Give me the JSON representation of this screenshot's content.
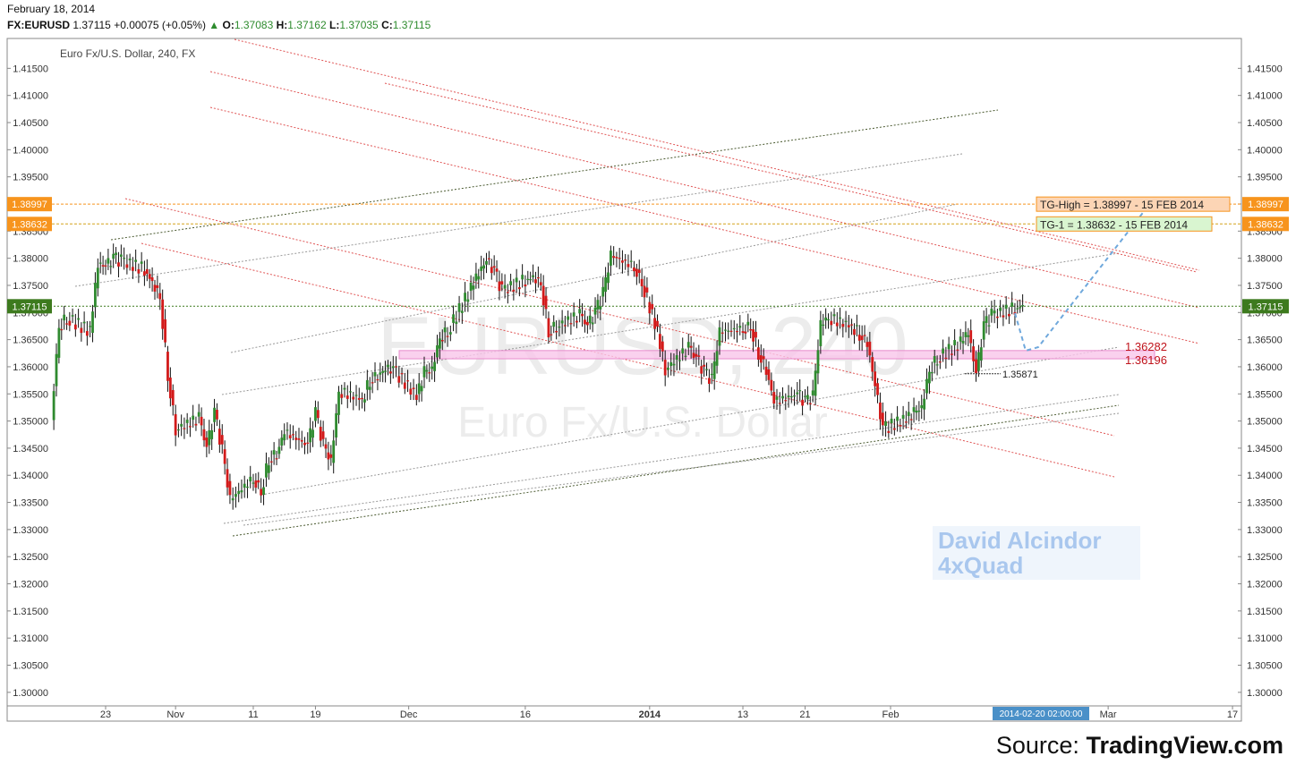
{
  "header": {
    "date": "February 18, 2014",
    "symbol": "FX:EURUSD",
    "last": "1.37115",
    "change": "+0.00075 (+0.05%)",
    "open_label": "O:",
    "open": "1.37083",
    "high_label": "H:",
    "high": "1.37162",
    "low_label": "L:",
    "low": "1.37035",
    "close_label": "C:",
    "close": "1.37115"
  },
  "chart_data": {
    "type": "candlestick",
    "title": "Euro Fx/U.S. Dollar, 240, FX",
    "watermark_symbol": "EURUSD, 240",
    "watermark_name": "Euro Fx/U.S. Dollar",
    "ylim": [
      1.2975,
      1.4205
    ],
    "y_ticks": [
      "1.41500",
      "1.41000",
      "1.40500",
      "1.40000",
      "1.39500",
      "1.39000",
      "1.38500",
      "1.38000",
      "1.37500",
      "1.37000",
      "1.36500",
      "1.36000",
      "1.35500",
      "1.35000",
      "1.34500",
      "1.34000",
      "1.33500",
      "1.33000",
      "1.32500",
      "1.32000",
      "1.31500",
      "1.31000",
      "1.30500",
      "1.30000"
    ],
    "x_ticks": [
      {
        "label": "23",
        "date": "2013-10-23"
      },
      {
        "label": "Nov",
        "date": "2013-11-01"
      },
      {
        "label": "11",
        "date": "2013-11-11"
      },
      {
        "label": "19",
        "date": "2013-11-19"
      },
      {
        "label": "Dec",
        "date": "2013-12-01"
      },
      {
        "label": "16",
        "date": "2013-12-16"
      },
      {
        "label": "2014",
        "date": "2014-01-01"
      },
      {
        "label": "13",
        "date": "2014-01-13"
      },
      {
        "label": "21",
        "date": "2014-01-21"
      },
      {
        "label": "Feb",
        "date": "2014-02-01"
      },
      {
        "label": "Mar",
        "date": "2014-03-01"
      },
      {
        "label": "17",
        "date": "2014-03-17"
      }
    ],
    "cursor_date_label": "2014-02-20 02:00:00",
    "price_tags": [
      {
        "value": "1.38997",
        "color": "#f7941d"
      },
      {
        "value": "1.38632",
        "color": "#f7941d"
      },
      {
        "value": "1.37115",
        "color": "#3d7a1e"
      }
    ],
    "annotations": [
      {
        "text": "TG-High = 1.38997 - 15 FEB 2014",
        "price": 1.38997,
        "bg": "#fcd5b5",
        "border": "#f7941d"
      },
      {
        "text": "TG-1 = 1.38632 - 15 FEB 2014",
        "price": 1.38632,
        "bg": "#d9f5d0",
        "border": "#f7941d"
      }
    ],
    "zone_labels": [
      {
        "text": "1.36282",
        "price": 1.36282
      },
      {
        "text": "1.36196",
        "price": 1.36196
      }
    ],
    "pivot_label": "1.35871",
    "pivot_price": 1.35871,
    "horizontal_lines": [
      1.38997,
      1.38632,
      1.37115
    ],
    "candle_close_path": [
      [
        "2013-10-16",
        1.3505
      ],
      [
        "2013-10-17",
        1.3675
      ],
      [
        "2013-10-18",
        1.369
      ],
      [
        "2013-10-21",
        1.3665
      ],
      [
        "2013-10-22",
        1.379
      ],
      [
        "2013-10-23",
        1.3785
      ],
      [
        "2013-10-24",
        1.38
      ],
      [
        "2013-10-25",
        1.3795
      ],
      [
        "2013-10-28",
        1.378
      ],
      [
        "2013-10-29",
        1.3755
      ],
      [
        "2013-10-30",
        1.373
      ],
      [
        "2013-10-31",
        1.3585
      ],
      [
        "2013-11-01",
        1.3485
      ],
      [
        "2013-11-04",
        1.3505
      ],
      [
        "2013-11-05",
        1.345
      ],
      [
        "2013-11-06",
        1.3515
      ],
      [
        "2013-11-07",
        1.3445
      ],
      [
        "2013-11-08",
        1.3355
      ],
      [
        "2013-11-11",
        1.3395
      ],
      [
        "2013-11-12",
        1.337
      ],
      [
        "2013-11-13",
        1.343
      ],
      [
        "2013-11-14",
        1.344
      ],
      [
        "2013-11-15",
        1.348
      ],
      [
        "2013-11-18",
        1.3455
      ],
      [
        "2013-11-19",
        1.3515
      ],
      [
        "2013-11-20",
        1.3455
      ],
      [
        "2013-11-21",
        1.3425
      ],
      [
        "2013-11-22",
        1.3555
      ],
      [
        "2013-11-25",
        1.354
      ],
      [
        "2013-11-26",
        1.3575
      ],
      [
        "2013-11-27",
        1.3585
      ],
      [
        "2013-11-28",
        1.3595
      ],
      [
        "2013-11-29",
        1.3595
      ],
      [
        "2013-12-02",
        1.3545
      ],
      [
        "2013-12-03",
        1.359
      ],
      [
        "2013-12-04",
        1.3595
      ],
      [
        "2013-12-05",
        1.3655
      ],
      [
        "2013-12-06",
        1.3665
      ],
      [
        "2013-12-09",
        1.3745
      ],
      [
        "2013-12-10",
        1.3775
      ],
      [
        "2013-12-11",
        1.3795
      ],
      [
        "2013-12-12",
        1.3775
      ],
      [
        "2013-12-13",
        1.374
      ],
      [
        "2013-12-16",
        1.376
      ],
      [
        "2013-12-17",
        1.3765
      ],
      [
        "2013-12-18",
        1.3755
      ],
      [
        "2013-12-19",
        1.3665
      ],
      [
        "2013-12-20",
        1.3675
      ],
      [
        "2013-12-23",
        1.3695
      ],
      [
        "2013-12-24",
        1.3675
      ],
      [
        "2013-12-25",
        1.37
      ],
      [
        "2013-12-26",
        1.3735
      ],
      [
        "2013-12-27",
        1.3805
      ],
      [
        "2013-12-30",
        1.3785
      ],
      [
        "2013-12-31",
        1.3755
      ],
      [
        "2014-01-02",
        1.3665
      ],
      [
        "2014-01-03",
        1.3595
      ],
      [
        "2014-01-06",
        1.3635
      ],
      [
        "2014-01-07",
        1.3615
      ],
      [
        "2014-01-08",
        1.359
      ],
      [
        "2014-01-09",
        1.3575
      ],
      [
        "2014-01-10",
        1.3665
      ],
      [
        "2014-01-13",
        1.367
      ],
      [
        "2014-01-14",
        1.3675
      ],
      [
        "2014-01-15",
        1.3625
      ],
      [
        "2014-01-16",
        1.3595
      ],
      [
        "2014-01-17",
        1.3535
      ],
      [
        "2014-01-20",
        1.355
      ],
      [
        "2014-01-21",
        1.3535
      ],
      [
        "2014-01-22",
        1.3545
      ],
      [
        "2014-01-23",
        1.368
      ],
      [
        "2014-01-24",
        1.369
      ],
      [
        "2014-01-27",
        1.3675
      ],
      [
        "2014-01-28",
        1.366
      ],
      [
        "2014-01-29",
        1.3645
      ],
      [
        "2014-01-30",
        1.3565
      ],
      [
        "2014-01-31",
        1.3485
      ],
      [
        "2014-02-03",
        1.3505
      ],
      [
        "2014-02-04",
        1.3515
      ],
      [
        "2014-02-05",
        1.3525
      ],
      [
        "2014-02-06",
        1.3595
      ],
      [
        "2014-02-07",
        1.3615
      ],
      [
        "2014-02-10",
        1.3645
      ],
      [
        "2014-02-11",
        1.3665
      ],
      [
        "2014-02-12",
        1.3587
      ],
      [
        "2014-02-13",
        1.3675
      ],
      [
        "2014-02-14",
        1.3695
      ],
      [
        "2014-02-17",
        1.3708
      ],
      [
        "2014-02-18",
        1.37115
      ]
    ]
  },
  "watermark": {
    "line1": "David Alcindor",
    "line2": "4xQuad"
  },
  "source": {
    "prefix": "Source: ",
    "brand": "TradingView.com"
  }
}
